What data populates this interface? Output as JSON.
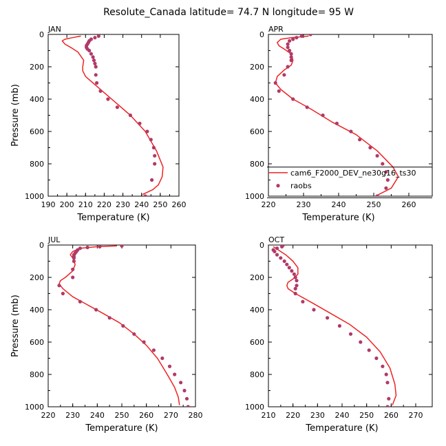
{
  "title": "Resolute_Canada   latitude= 74.7 N longitude= 95 W",
  "colors": {
    "model": "#ee2222",
    "obs": "#b03a68",
    "axis": "#000000"
  },
  "chart_data": [
    {
      "type": "line",
      "label": "JAN",
      "xlabel": "Temperature (K)",
      "ylabel": "Pressure (mb)",
      "xlim": [
        190,
        260
      ],
      "ylim": [
        1000,
        0
      ],
      "xticks": [
        190,
        200,
        210,
        220,
        230,
        240,
        250,
        260
      ],
      "yticks": [
        0,
        200,
        400,
        600,
        800,
        1000
      ],
      "series": [
        {
          "name": "cam6_F2000_DEV_ne30g16_ts30",
          "kind": "line",
          "x": [
            207.5,
            203,
            199,
            197.5,
            199,
            202,
            206,
            209,
            208.5,
            208.5,
            210,
            214,
            219,
            226,
            234,
            242,
            248,
            251.5,
            251,
            249,
            246,
            240.5
          ],
          "y": [
            10,
            20,
            30,
            40,
            60,
            80,
            110,
            160,
            200,
            225,
            260,
            300,
            350,
            420,
            500,
            600,
            720,
            820,
            880,
            930,
            960,
            990
          ]
        },
        {
          "name": "raobs",
          "kind": "scatter",
          "x": [
            217,
            215,
            213,
            212,
            211.5,
            211,
            210.5,
            210.5,
            211,
            212,
            213,
            214,
            214.5,
            215,
            215.5,
            215.5,
            216,
            218,
            222,
            227,
            234,
            239,
            243,
            245,
            246.5,
            247,
            247,
            245.5,
            242
          ],
          "y": [
            10,
            20,
            30,
            40,
            50,
            60,
            70,
            80,
            90,
            100,
            120,
            140,
            160,
            180,
            200,
            250,
            300,
            350,
            400,
            450,
            500,
            550,
            600,
            650,
            700,
            750,
            800,
            900,
            1000
          ]
        }
      ]
    },
    {
      "type": "line",
      "label": "APR",
      "xlabel": "Temperature (K)",
      "ylabel": "",
      "xlim": [
        220,
        260
      ],
      "ylim": [
        1000,
        0
      ],
      "xticks": [
        220,
        230,
        240,
        250,
        260
      ],
      "yticks": [
        0,
        200,
        400,
        600,
        800,
        1000
      ],
      "legend": {
        "entries": [
          "cam6_F2000_DEV_ne30g16_ts30",
          "raobs"
        ],
        "model_label_visible": "cam6_F2000_DEV_ne30g16_ts30"
      },
      "series": [
        {
          "name": "cam6_F2000_DEV_ne30g16_ts30",
          "kind": "line",
          "x": [
            231.5,
            226.5,
            223.5,
            222.5,
            223,
            224.5,
            226.5,
            227,
            226.5,
            224.5,
            222.5,
            222,
            223.5,
            227,
            232,
            238,
            245,
            251,
            255.5,
            257,
            255,
            250.5
          ],
          "y": [
            10,
            20,
            30,
            50,
            70,
            90,
            120,
            160,
            190,
            220,
            260,
            300,
            340,
            400,
            460,
            540,
            620,
            720,
            820,
            880,
            950,
            1000
          ]
        },
        {
          "name": "raobs",
          "kind": "scatter",
          "x": [
            232,
            229.5,
            228,
            227,
            226,
            225.5,
            225.5,
            226,
            226.5,
            226.5,
            226.5,
            225.5,
            224.5,
            222,
            223,
            227,
            231,
            235.5,
            239.5,
            243.5,
            246,
            249,
            251,
            252.5,
            253.5,
            254,
            253.5,
            251
          ],
          "y": [
            0,
            10,
            20,
            30,
            40,
            60,
            80,
            100,
            120,
            140,
            160,
            200,
            250,
            300,
            350,
            400,
            450,
            500,
            550,
            600,
            650,
            700,
            750,
            800,
            850,
            900,
            950,
            1000
          ]
        }
      ]
    },
    {
      "type": "line",
      "label": "JUL",
      "xlabel": "Temperature (K)",
      "ylabel": "Pressure (mb)",
      "xlim": [
        220,
        280
      ],
      "ylim": [
        1000,
        0
      ],
      "xticks": [
        220,
        230,
        240,
        250,
        260,
        270,
        280
      ],
      "yticks": [
        0,
        200,
        400,
        600,
        800,
        1000
      ],
      "series": [
        {
          "name": "cam6_F2000_DEV_ne30g16_ts30",
          "kind": "line",
          "x": [
            248,
            240,
            233,
            230,
            229,
            230,
            231,
            230,
            227,
            225,
            224.5,
            226,
            230,
            236,
            242,
            249,
            255,
            260,
            264.5,
            268.5,
            271.5,
            273,
            273.5
          ],
          "y": [
            5,
            10,
            20,
            40,
            60,
            80,
            120,
            160,
            200,
            220,
            240,
            270,
            320,
            370,
            420,
            480,
            550,
            620,
            700,
            800,
            880,
            940,
            990
          ]
        },
        {
          "name": "raobs",
          "kind": "scatter",
          "x": [
            250,
            241,
            236,
            233,
            232,
            231.5,
            231,
            230.5,
            230.5,
            230.5,
            230.5,
            230,
            230,
            224.5,
            226,
            233,
            239.5,
            245,
            250.5,
            255,
            259,
            263,
            266.5,
            269.5,
            271.5,
            274,
            275.5,
            276.5,
            277
          ],
          "y": [
            5,
            10,
            15,
            20,
            30,
            40,
            50,
            60,
            70,
            80,
            100,
            150,
            200,
            250,
            300,
            350,
            400,
            450,
            500,
            550,
            600,
            650,
            700,
            750,
            800,
            850,
            900,
            950,
            1000
          ]
        }
      ]
    },
    {
      "type": "line",
      "label": "OCT",
      "xlabel": "Temperature (K)",
      "ylabel": "",
      "xlim": [
        210,
        270
      ],
      "ylim": [
        1000,
        0
      ],
      "xticks": [
        210,
        220,
        230,
        240,
        250,
        260,
        270
      ],
      "yticks": [
        0,
        200,
        400,
        600,
        800,
        1000
      ],
      "series": [
        {
          "name": "cam6_F2000_DEV_ne30g16_ts30",
          "kind": "line",
          "x": [
            212,
            214,
            217,
            220,
            222,
            222,
            220,
            218,
            217.5,
            218,
            221,
            227,
            235,
            243,
            250,
            255.5,
            259.5,
            261.5,
            262,
            260.5
          ],
          "y": [
            10,
            30,
            60,
            100,
            140,
            180,
            210,
            230,
            250,
            270,
            300,
            350,
            420,
            490,
            570,
            660,
            760,
            860,
            930,
            990
          ]
        },
        {
          "name": "raobs",
          "kind": "scatter",
          "x": [
            216,
            215.5,
            213.5,
            212,
            212.5,
            213.5,
            215,
            216.5,
            217.5,
            218.5,
            219.5,
            220.5,
            221,
            221.5,
            221.5,
            221,
            221,
            224,
            228.5,
            234,
            239,
            243.5,
            247.5,
            251,
            254,
            256.5,
            258,
            258.5,
            259,
            258.5
          ],
          "y": [
            0,
            10,
            20,
            30,
            40,
            60,
            80,
            100,
            120,
            140,
            160,
            180,
            200,
            220,
            250,
            270,
            300,
            350,
            400,
            450,
            500,
            550,
            600,
            650,
            700,
            750,
            800,
            850,
            950,
            1000
          ]
        }
      ]
    }
  ]
}
